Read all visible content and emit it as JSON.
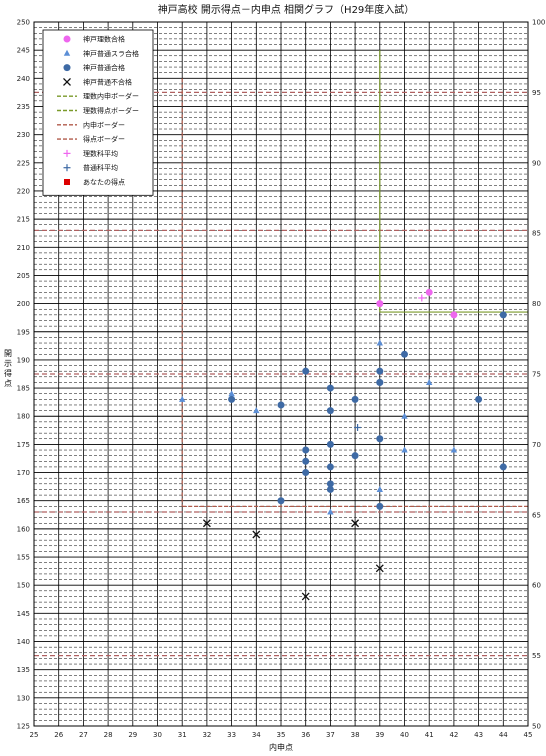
{
  "chart_data": {
    "type": "scatter",
    "title": "神戸高校 開示得点－内申点 相関グラフ（H29年度入試）",
    "xlabel": "内申点",
    "ylabel": "開示得点",
    "xlim": [
      25,
      45
    ],
    "ylim": [
      125,
      250
    ],
    "y2lim": [
      50,
      100
    ],
    "x_ticks": [
      25,
      26,
      27,
      28,
      29,
      30,
      31,
      32,
      33,
      34,
      35,
      36,
      37,
      38,
      39,
      40,
      41,
      42,
      43,
      44,
      45
    ],
    "y_ticks": [
      125,
      130,
      135,
      140,
      145,
      150,
      155,
      160,
      165,
      170,
      175,
      180,
      185,
      190,
      195,
      200,
      205,
      210,
      215,
      220,
      225,
      230,
      235,
      240,
      245,
      250
    ],
    "y2_ticks": [
      50,
      55,
      60,
      65,
      70,
      75,
      80,
      85,
      90,
      95,
      100
    ],
    "grid": true,
    "legend_placement": "top-left",
    "colors": {
      "rika_pass": "#ee66ee",
      "futsu_slide": "#5b8ed6",
      "futsu_pass": "#3e6aa5",
      "futsu_fail": "#111111",
      "rika_border": "#7a9a2a",
      "naishin_border": "#b05a4a",
      "score_border": "#b06060",
      "my_score": "#dd0000"
    },
    "legend": [
      {
        "label": "神戸理数合格",
        "marker": "dot-pink"
      },
      {
        "label": "神戸普通スラ合格",
        "marker": "triangle-blue"
      },
      {
        "label": "神戸普通合格",
        "marker": "dot-blue"
      },
      {
        "label": "神戸普通不合格",
        "marker": "x-black"
      },
      {
        "label": "理数内申ボーダー",
        "marker": "dash-olive"
      },
      {
        "label": "理数得点ボーダー",
        "marker": "dash-olive"
      },
      {
        "label": "内申ボーダー",
        "marker": "dash-brown"
      },
      {
        "label": "得点ボーダー",
        "marker": "dash-brown"
      },
      {
        "label": "理数科平均",
        "marker": "plus-pink"
      },
      {
        "label": "普通科平均",
        "marker": "plus-blue"
      },
      {
        "label": "あなたの得点",
        "marker": "square-red"
      }
    ],
    "series": [
      {
        "name": "神戸理数合格",
        "points": [
          [
            39,
            200
          ],
          [
            41,
            202
          ],
          [
            42,
            198
          ]
        ]
      },
      {
        "name": "神戸普通スラ合格",
        "points": [
          [
            31,
            183
          ],
          [
            33,
            184
          ],
          [
            34,
            181
          ],
          [
            39,
            193
          ],
          [
            39,
            167
          ],
          [
            40,
            180
          ],
          [
            40,
            174
          ],
          [
            41,
            186
          ],
          [
            42,
            174
          ],
          [
            37,
            163
          ]
        ]
      },
      {
        "name": "神戸普通合格",
        "points": [
          [
            33,
            183
          ],
          [
            35,
            182
          ],
          [
            35,
            165
          ],
          [
            36,
            188
          ],
          [
            36,
            174
          ],
          [
            36,
            172
          ],
          [
            36,
            170
          ],
          [
            37,
            185
          ],
          [
            37,
            181
          ],
          [
            37,
            175
          ],
          [
            37,
            171
          ],
          [
            37,
            168
          ],
          [
            37,
            167
          ],
          [
            38,
            183
          ],
          [
            38,
            173
          ],
          [
            39,
            188
          ],
          [
            39,
            186
          ],
          [
            39,
            176
          ],
          [
            39,
            164
          ],
          [
            39,
            186
          ],
          [
            40,
            191
          ],
          [
            43,
            183
          ],
          [
            44,
            198
          ],
          [
            44,
            171
          ]
        ]
      },
      {
        "name": "神戸普通不合格",
        "points": [
          [
            32,
            161
          ],
          [
            34,
            159
          ],
          [
            36,
            148
          ],
          [
            38,
            161
          ],
          [
            39,
            153
          ]
        ]
      },
      {
        "name": "理数科平均",
        "points": [
          [
            40.7,
            201
          ]
        ]
      },
      {
        "name": "普通科平均",
        "points": [
          [
            38.1,
            178
          ]
        ]
      }
    ],
    "rika_naishin_border": 39,
    "rika_score_border": 198.5,
    "naishin_border": 31,
    "score_border": 164,
    "score_band_lines": [
      237.5,
      213,
      187.5,
      163,
      137.5
    ]
  }
}
